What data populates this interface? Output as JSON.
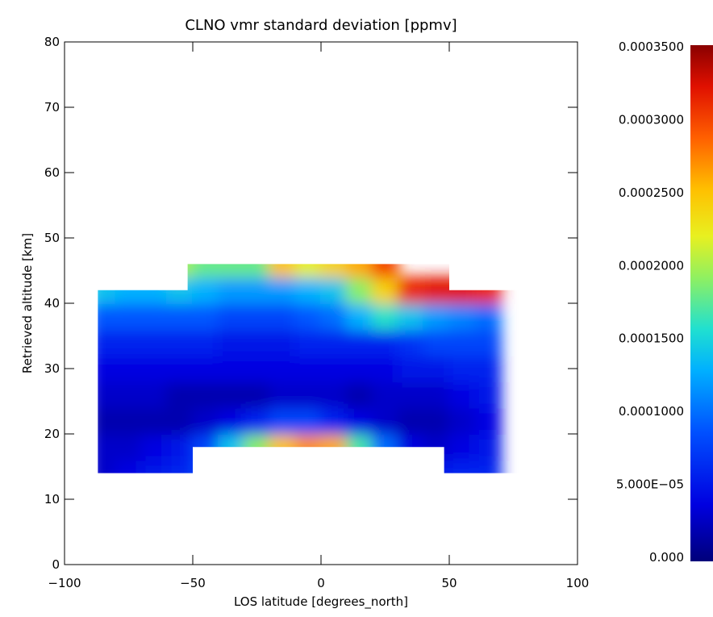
{
  "chart_data": {
    "type": "heatmap",
    "title": "CLNO vmr standard deviation [ppmv]",
    "xlabel": "LOS latitude [degrees_north]",
    "ylabel": "Retrieved altitude [km]",
    "xlim": [
      -100,
      100
    ],
    "ylim": [
      0,
      80
    ],
    "x_ticks": [
      "-100",
      "-50",
      "0",
      "50",
      "100"
    ],
    "y_ticks": [
      "0",
      "10",
      "20",
      "30",
      "40",
      "50",
      "60",
      "70",
      "80"
    ],
    "colorbar": {
      "range": [
        0,
        0.00035
      ],
      "tick_labels": [
        "0.000",
        "5.000E-05",
        "0.0001000",
        "0.0001500",
        "0.0002000",
        "0.0002500",
        "0.0003000",
        "0.0003500"
      ],
      "colormap": "rainbow"
    },
    "data_regions": [
      {
        "lat": [
          -87,
          -52
        ],
        "alt": [
          14,
          42
        ]
      },
      {
        "lat": [
          -52,
          -50
        ],
        "alt": [
          14,
          46
        ]
      },
      {
        "lat": [
          -50,
          48
        ],
        "alt": [
          18,
          46
        ]
      },
      {
        "lat": [
          48,
          50
        ],
        "alt": [
          14,
          46
        ]
      },
      {
        "lat": [
          50,
          90
        ],
        "alt": [
          14,
          42
        ]
      }
    ],
    "rows": [
      {
        "alt": 14,
        "values": [
          3e-05,
          4e-05,
          5e-05,
          6e-05,
          8e-05,
          8e-05,
          8e-05,
          8e-05,
          8e-05,
          6e-05,
          5e-05,
          6e-05,
          6e-05,
          5e-05,
          6e-05,
          6e-05
        ]
      },
      {
        "alt": 18,
        "values": [
          3e-05,
          3e-05,
          4e-05,
          5e-05,
          8e-05,
          0.00014,
          0.00019,
          0.00025,
          0.00027,
          0.00026,
          0.00017,
          0.0001,
          4e-05,
          3e-05,
          4e-05,
          5e-05
        ]
      },
      {
        "alt": 22,
        "values": [
          2e-05,
          2e-05,
          2e-05,
          2e-05,
          3e-05,
          4e-05,
          6e-05,
          8e-05,
          8e-05,
          6e-05,
          4e-05,
          3e-05,
          2e-05,
          2e-05,
          3e-05,
          4e-05
        ]
      },
      {
        "alt": 26,
        "values": [
          3e-05,
          3e-05,
          3e-05,
          2e-05,
          2e-05,
          2e-05,
          2e-05,
          3e-05,
          3e-05,
          3e-05,
          2e-05,
          3e-05,
          3e-05,
          3e-05,
          4e-05,
          5e-05
        ]
      },
      {
        "alt": 30,
        "values": [
          4e-05,
          4e-05,
          4e-05,
          4e-05,
          4e-05,
          4e-05,
          4e-05,
          4e-05,
          4e-05,
          4e-05,
          4e-05,
          4e-05,
          5e-05,
          5e-05,
          6e-05,
          6e-05
        ]
      },
      {
        "alt": 34,
        "values": [
          6e-05,
          6e-05,
          6e-05,
          6e-05,
          6e-05,
          5e-05,
          5e-05,
          5e-05,
          6e-05,
          6e-05,
          6e-05,
          6e-05,
          7e-05,
          8e-05,
          8e-05,
          8e-05
        ]
      },
      {
        "alt": 38,
        "values": [
          9e-05,
          9e-05,
          9e-05,
          9e-05,
          9e-05,
          8e-05,
          8e-05,
          8e-05,
          9e-05,
          0.0001,
          0.00013,
          0.00016,
          0.00014,
          0.00012,
          0.00011,
          0.0001
        ]
      },
      {
        "alt": 42,
        "values": [
          0.00014,
          0.00013,
          0.00013,
          0.00014,
          0.00013,
          0.00012,
          0.00012,
          0.00012,
          0.00013,
          0.00014,
          0.00019,
          0.00024,
          0.00031,
          0.00032,
          0.00032,
          0.00031
        ]
      },
      {
        "alt": 46,
        "values": [
          null,
          null,
          null,
          0.0002,
          0.00018,
          0.00018,
          0.00018,
          0.00025,
          0.00022,
          0.00024,
          0.00026,
          0.0003,
          null,
          null,
          null,
          null
        ]
      }
    ],
    "row_lats": [
      -85,
      -75,
      -65,
      -55,
      -45,
      -35,
      -25,
      -15,
      -5,
      5,
      15,
      25,
      35,
      45,
      55,
      65
    ]
  }
}
